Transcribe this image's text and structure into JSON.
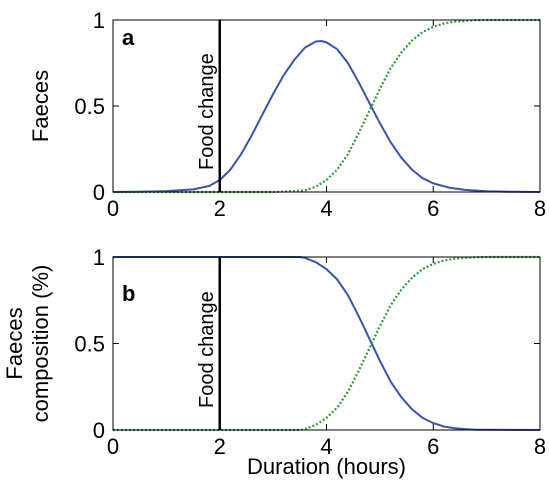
{
  "chart_data": [
    {
      "type": "line",
      "panel_label": "a",
      "xlabel": "",
      "ylabel": "Faeces",
      "xlim": [
        0,
        8
      ],
      "ylim": [
        0,
        1
      ],
      "xticks": [
        0,
        2,
        4,
        6,
        8
      ],
      "yticks": [
        0,
        0.5,
        1
      ],
      "grid": false,
      "annotation": {
        "text": "Food change",
        "x": 2
      },
      "series": [
        {
          "color": "#3955a8",
          "style": "solid",
          "x": [
            0,
            0.5,
            1.0,
            1.5,
            1.8,
            2.0,
            2.2,
            2.4,
            2.6,
            2.8,
            3.0,
            3.2,
            3.4,
            3.6,
            3.8,
            3.9,
            4.0,
            4.2,
            4.4,
            4.6,
            4.8,
            5.0,
            5.2,
            5.4,
            5.6,
            5.8,
            6.0,
            6.3,
            6.6,
            7.0,
            7.5,
            8.0
          ],
          "y": [
            0,
            0.002,
            0.005,
            0.015,
            0.035,
            0.07,
            0.13,
            0.22,
            0.33,
            0.45,
            0.57,
            0.68,
            0.77,
            0.84,
            0.875,
            0.878,
            0.87,
            0.83,
            0.75,
            0.64,
            0.52,
            0.4,
            0.29,
            0.2,
            0.13,
            0.08,
            0.05,
            0.025,
            0.012,
            0.004,
            0.001,
            0
          ]
        },
        {
          "color": "#2e9a3c",
          "style": "dotted",
          "x": [
            0,
            3.0,
            3.4,
            3.6,
            3.8,
            4.0,
            4.2,
            4.4,
            4.6,
            4.8,
            5.0,
            5.2,
            5.4,
            5.6,
            5.8,
            6.0,
            6.2,
            6.4,
            6.6,
            6.8,
            7.0,
            8.0
          ],
          "y": [
            0,
            0,
            0.005,
            0.01,
            0.03,
            0.07,
            0.13,
            0.22,
            0.34,
            0.47,
            0.6,
            0.72,
            0.81,
            0.88,
            0.93,
            0.96,
            0.98,
            0.99,
            0.995,
            0.999,
            1.0,
            1.0
          ]
        }
      ]
    },
    {
      "type": "line",
      "panel_label": "b",
      "xlabel": "Duration (hours)",
      "ylabel": "Faeces composition (%)",
      "ylabel_lines": [
        "Faeces",
        "composition (%)"
      ],
      "xlim": [
        0,
        8
      ],
      "ylim": [
        0,
        1
      ],
      "xticks": [
        0,
        2,
        4,
        6,
        8
      ],
      "yticks": [
        0,
        0.5,
        1
      ],
      "grid": false,
      "annotation": {
        "text": "Food change",
        "x": 2
      },
      "series": [
        {
          "color": "#3955a8",
          "style": "solid",
          "x": [
            0,
            3.5,
            3.6,
            3.8,
            4.0,
            4.2,
            4.4,
            4.6,
            4.8,
            5.0,
            5.2,
            5.4,
            5.6,
            5.8,
            6.0,
            6.2,
            6.4,
            6.6,
            6.8,
            7.0,
            8.0
          ],
          "y": [
            1,
            1,
            0.995,
            0.97,
            0.93,
            0.87,
            0.78,
            0.66,
            0.53,
            0.4,
            0.28,
            0.19,
            0.12,
            0.07,
            0.04,
            0.02,
            0.01,
            0.005,
            0.002,
            0.001,
            0
          ]
        },
        {
          "color": "#2e9a3c",
          "style": "dotted",
          "x": [
            0,
            3.5,
            3.6,
            3.8,
            4.0,
            4.2,
            4.4,
            4.6,
            4.8,
            5.0,
            5.2,
            5.4,
            5.6,
            5.8,
            6.0,
            6.2,
            6.4,
            6.6,
            6.8,
            7.0,
            8.0
          ],
          "y": [
            0,
            0,
            0.005,
            0.03,
            0.07,
            0.13,
            0.22,
            0.34,
            0.47,
            0.6,
            0.72,
            0.81,
            0.88,
            0.93,
            0.96,
            0.98,
            0.99,
            0.995,
            0.998,
            1.0,
            1.0
          ]
        }
      ]
    }
  ]
}
